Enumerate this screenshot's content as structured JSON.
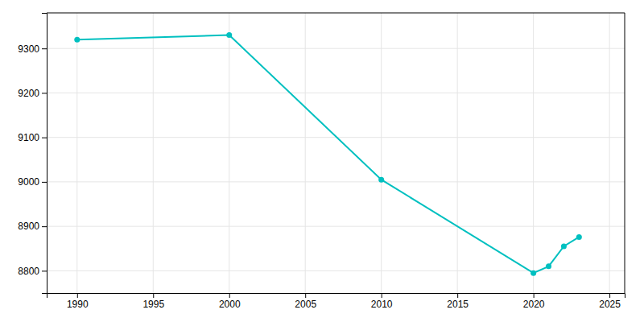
{
  "chart_data": {
    "type": "line",
    "x": [
      1990,
      2000,
      2010,
      2020,
      2021,
      2022,
      2023
    ],
    "values": [
      9320,
      9330,
      9005,
      8795,
      8810,
      8855,
      8876
    ],
    "color": "#00c0c0",
    "marker": "circle",
    "xlim": [
      1988,
      2026
    ],
    "ylim": [
      8750,
      9380
    ],
    "xticks": [
      1990,
      1995,
      2000,
      2005,
      2010,
      2015,
      2020,
      2025
    ],
    "yticks": [
      8800,
      8900,
      9000,
      9100,
      9200,
      9300
    ],
    "grid": true
  }
}
